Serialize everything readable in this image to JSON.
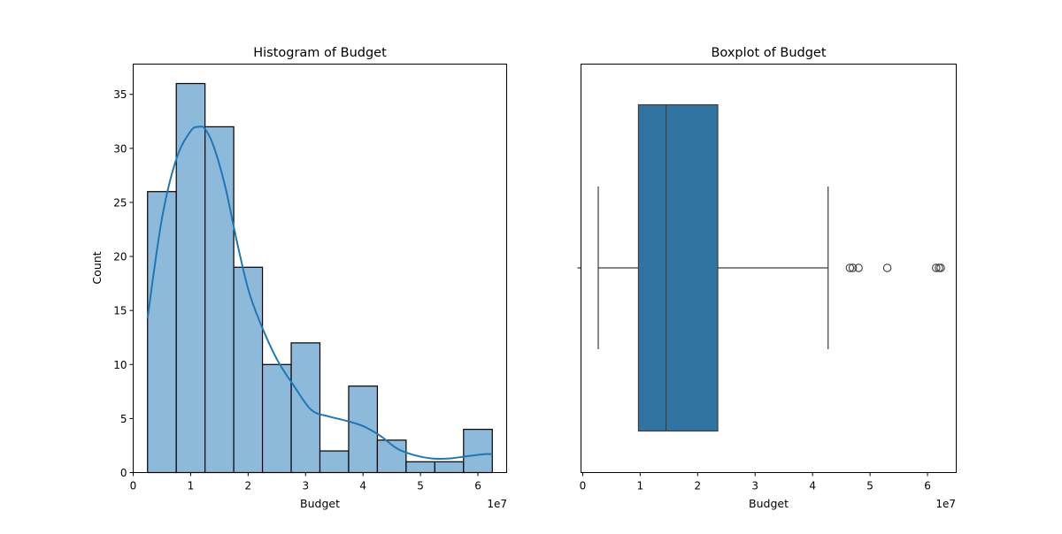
{
  "chart_data": [
    {
      "type": "bar",
      "title": "Histogram of Budget",
      "xlabel": "Budget",
      "ylabel": "Count",
      "x_offset_text": "1e7",
      "x_scale": 10000000,
      "xlim": [
        0,
        6.5
      ],
      "ylim": [
        0,
        37.8
      ],
      "x_ticks": [
        0,
        1,
        2,
        3,
        4,
        5,
        6
      ],
      "y_ticks": [
        0,
        5,
        10,
        15,
        20,
        25,
        30,
        35
      ],
      "bin_edges": [
        0.25,
        0.75,
        1.25,
        1.75,
        2.25,
        2.75,
        3.25,
        3.75,
        4.25,
        4.75,
        5.25,
        5.75,
        6.25
      ],
      "counts": [
        26,
        36,
        32,
        19,
        10,
        12,
        2,
        8,
        3,
        1,
        1,
        4
      ],
      "kde": {
        "x": [
          0.25,
          0.5,
          0.75,
          1.0,
          1.15,
          1.25,
          1.4,
          1.6,
          1.8,
          2.0,
          2.2,
          2.5,
          2.8,
          3.1,
          3.4,
          3.7,
          4.0,
          4.3,
          4.6,
          4.9,
          5.2,
          5.5,
          5.8,
          6.1,
          6.25
        ],
        "y": [
          14.3,
          23.5,
          29.0,
          31.6,
          32.0,
          31.8,
          30.2,
          26.5,
          21.5,
          17.0,
          14.0,
          10.5,
          8.0,
          5.8,
          5.2,
          4.8,
          4.3,
          3.4,
          2.2,
          1.6,
          1.3,
          1.3,
          1.5,
          1.7,
          1.7
        ]
      },
      "color": "#8db9db",
      "line_color": "#1f77b4"
    },
    {
      "type": "boxplot",
      "title": "Boxplot of Budget",
      "xlabel": "Budget",
      "x_offset_text": "1e7",
      "xlim": [
        -0.03,
        6.5
      ],
      "x_ticks": [
        0,
        1,
        2,
        3,
        4,
        5,
        6
      ],
      "whisker_low": 0.27,
      "q1": 0.97,
      "median": 1.45,
      "q3": 2.35,
      "whisker_high": 4.27,
      "outliers": [
        4.65,
        4.7,
        4.8,
        5.3,
        6.15,
        6.2,
        6.23
      ],
      "color": "#3274a1"
    }
  ]
}
